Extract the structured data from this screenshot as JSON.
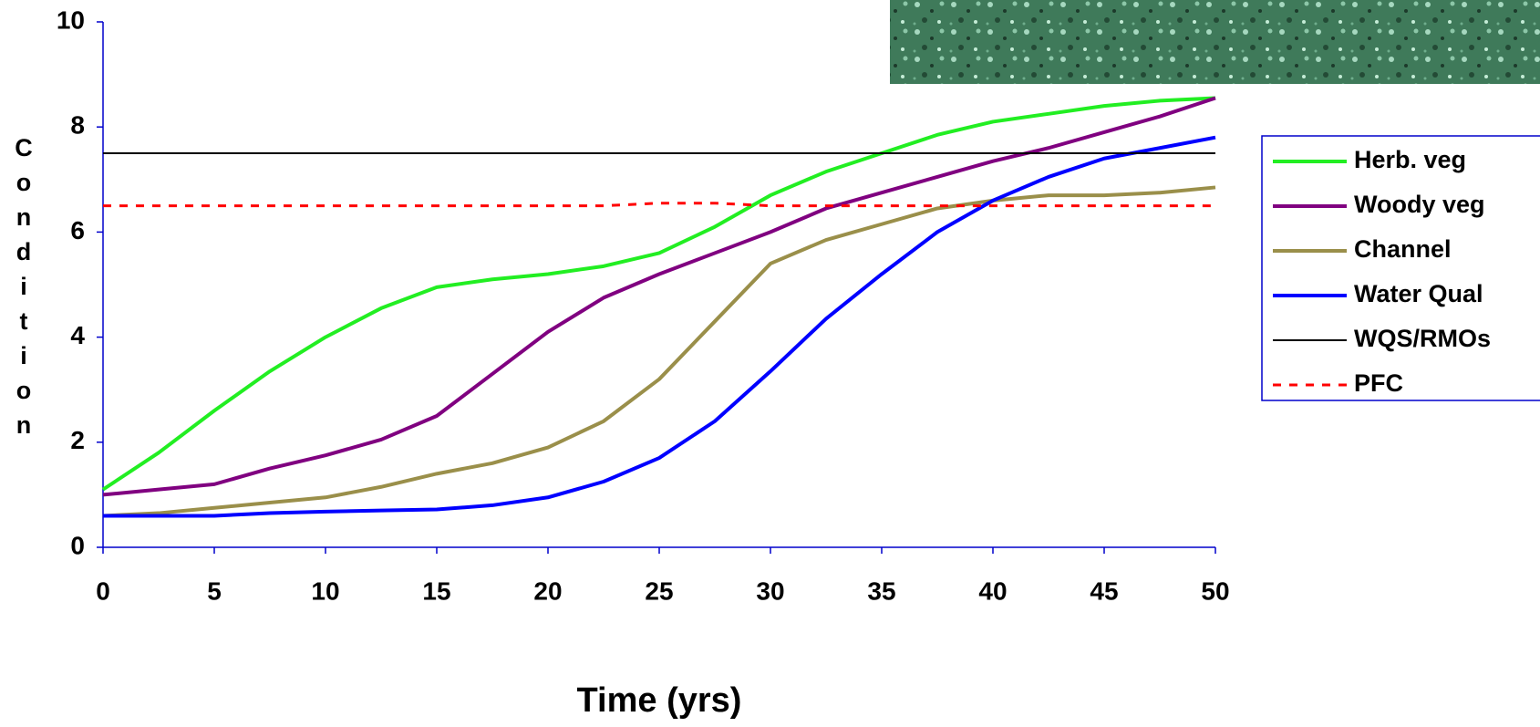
{
  "chart_data": {
    "type": "line",
    "x_label": "Time (yrs)",
    "y_label": "Condition",
    "x": [
      0,
      2.5,
      5,
      7.5,
      10,
      12.5,
      15,
      17.5,
      20,
      22.5,
      25,
      27.5,
      30,
      32.5,
      35,
      37.5,
      40,
      42.5,
      45,
      47.5,
      50
    ],
    "series": [
      {
        "name": "Herb. veg",
        "color": "#22ee22",
        "width": 4,
        "dash": "solid",
        "values": [
          1.1,
          1.8,
          2.6,
          3.35,
          4.0,
          4.55,
          4.95,
          5.1,
          5.2,
          5.35,
          5.6,
          6.1,
          6.7,
          7.15,
          7.5,
          7.85,
          8.1,
          8.25,
          8.4,
          8.5,
          8.55
        ]
      },
      {
        "name": "Woody veg",
        "color": "#800080",
        "width": 4,
        "dash": "solid",
        "values": [
          1.0,
          1.1,
          1.2,
          1.5,
          1.75,
          2.05,
          2.5,
          3.3,
          4.1,
          4.75,
          5.2,
          5.6,
          6.0,
          6.45,
          6.75,
          7.05,
          7.35,
          7.6,
          7.9,
          8.2,
          8.55
        ]
      },
      {
        "name": "Channel",
        "color": "#9a8f4a",
        "width": 4,
        "dash": "solid",
        "values": [
          0.6,
          0.65,
          0.75,
          0.85,
          0.95,
          1.15,
          1.4,
          1.6,
          1.9,
          2.4,
          3.2,
          4.3,
          5.4,
          5.85,
          6.15,
          6.45,
          6.6,
          6.7,
          6.7,
          6.75,
          6.85
        ]
      },
      {
        "name": "Water Qual",
        "color": "#0000ff",
        "width": 4,
        "dash": "solid",
        "values": [
          0.6,
          0.6,
          0.6,
          0.65,
          0.68,
          0.7,
          0.72,
          0.8,
          0.95,
          1.25,
          1.7,
          2.4,
          3.35,
          4.35,
          5.2,
          6.0,
          6.6,
          7.05,
          7.4,
          7.6,
          7.8
        ]
      },
      {
        "name": "WQS/RMOs",
        "color": "#000000",
        "width": 2,
        "dash": "solid",
        "values": [
          7.5,
          7.5,
          7.5,
          7.5,
          7.5,
          7.5,
          7.5,
          7.5,
          7.5,
          7.5,
          7.5,
          7.5,
          7.5,
          7.5,
          7.5,
          7.5,
          7.5,
          7.5,
          7.5,
          7.5,
          7.5
        ]
      },
      {
        "name": "PFC",
        "color": "#ff0000",
        "width": 3,
        "dash": "dashed",
        "values": [
          6.5,
          6.5,
          6.5,
          6.5,
          6.5,
          6.5,
          6.5,
          6.5,
          6.5,
          6.5,
          6.55,
          6.55,
          6.5,
          6.5,
          6.5,
          6.5,
          6.5,
          6.5,
          6.5,
          6.5,
          6.5
        ]
      }
    ],
    "xlim": [
      0,
      50
    ],
    "xticks": [
      0,
      5,
      10,
      15,
      20,
      25,
      30,
      35,
      40,
      45,
      50
    ],
    "ylim": [
      0,
      10
    ],
    "yticks": [
      0,
      2,
      4,
      6,
      8,
      10
    ],
    "grid": false,
    "legend": "right"
  }
}
